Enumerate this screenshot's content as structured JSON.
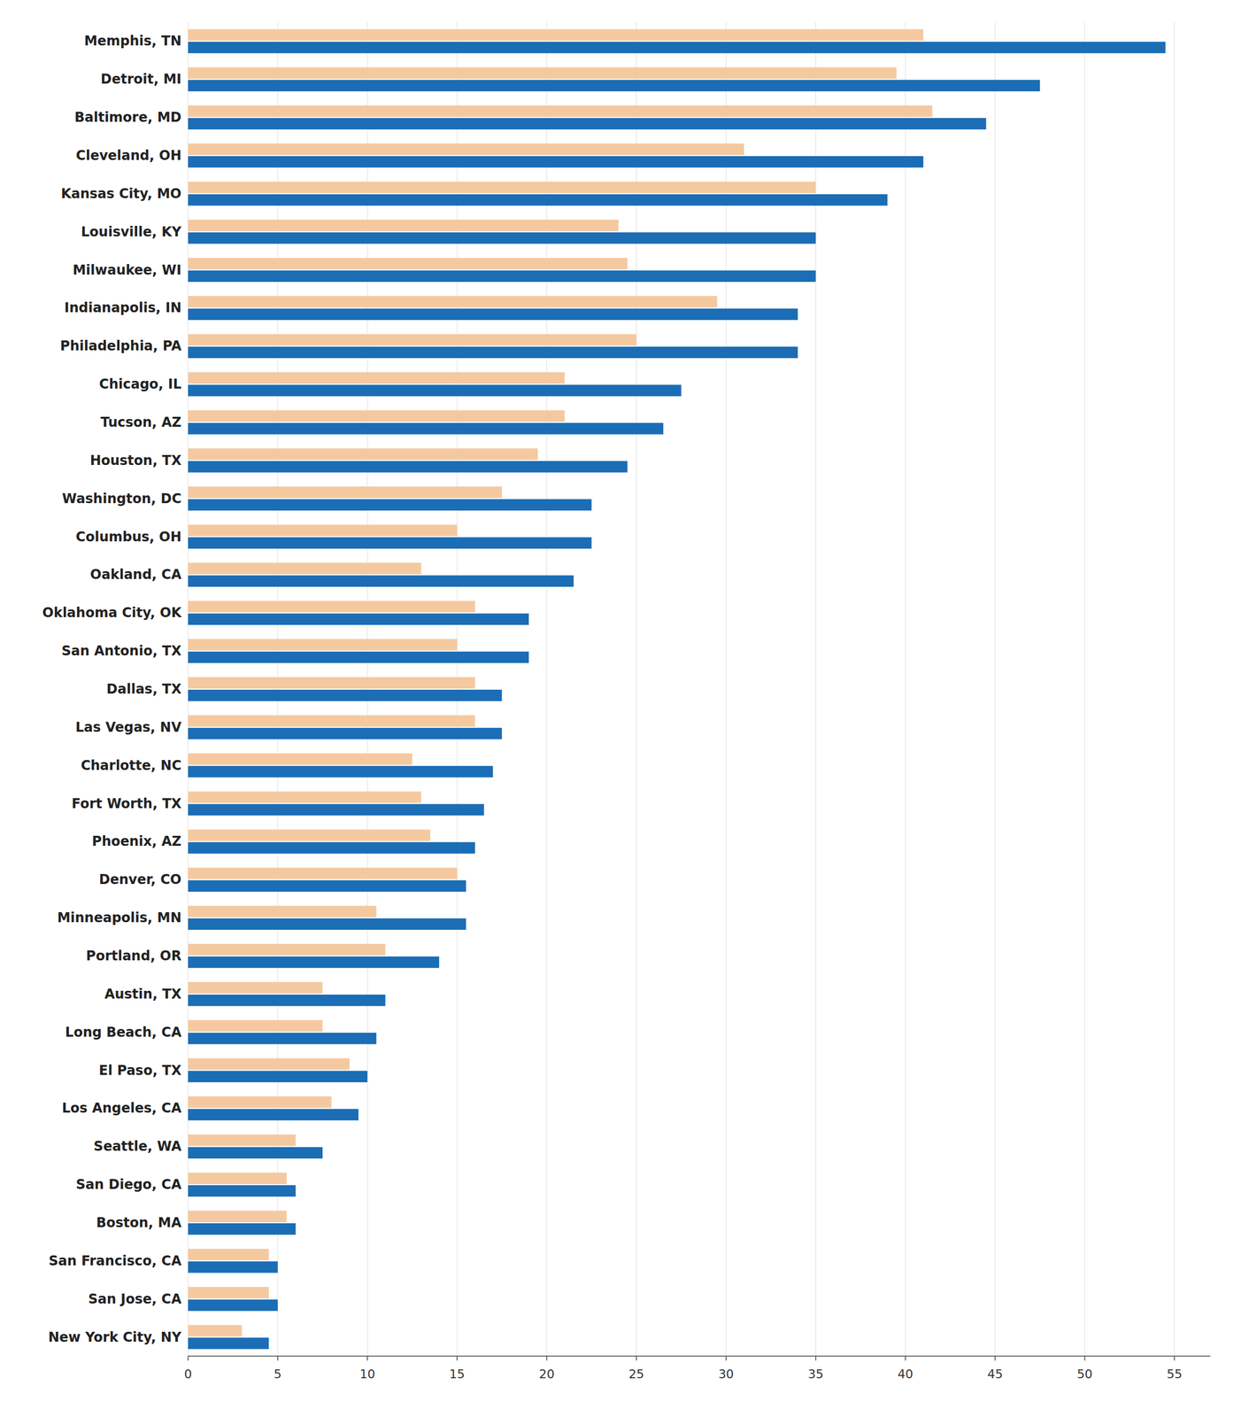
{
  "chart_data": {
    "type": "bar",
    "orientation": "horizontal",
    "grid": true,
    "categories": [
      "Memphis, TN",
      "Detroit, MI",
      "Baltimore, MD",
      "Cleveland, OH",
      "Kansas City, MO",
      "Louisville, KY",
      "Milwaukee, WI",
      "Indianapolis, IN",
      "Philadelphia, PA",
      "Chicago, IL",
      "Tucson, AZ",
      "Houston, TX",
      "Washington, DC",
      "Columbus, OH",
      "Oakland, CA",
      "Oklahoma City, OK",
      "San Antonio, TX",
      "Dallas, TX",
      "Las Vegas, NV",
      "Charlotte, NC",
      "Fort Worth, TX",
      "Phoenix, AZ",
      "Denver, CO",
      "Minneapolis, MN",
      "Portland, OR",
      "Austin, TX",
      "Long Beach, CA",
      "El Paso, TX",
      "Los Angeles, CA",
      "Seattle, WA",
      "San Diego, CA",
      "Boston, MA",
      "San Francisco, CA",
      "San Jose, CA",
      "New York City, NY"
    ],
    "series": [
      {
        "color": "#F5C9A0",
        "values": [
          41.0,
          39.5,
          41.5,
          31.0,
          35.0,
          24.0,
          24.5,
          29.5,
          25.0,
          21.0,
          21.0,
          19.5,
          17.5,
          15.0,
          13.0,
          16.0,
          15.0,
          16.0,
          16.0,
          12.5,
          13.0,
          13.5,
          15.0,
          10.5,
          11.0,
          7.5,
          7.5,
          9.0,
          8.0,
          6.0,
          5.5,
          5.5,
          4.5,
          4.5,
          3.0
        ]
      },
      {
        "color": "#1B6DB5",
        "values": [
          54.5,
          47.5,
          44.5,
          41.0,
          39.0,
          35.0,
          35.0,
          34.0,
          34.0,
          27.5,
          26.5,
          24.5,
          22.5,
          22.5,
          21.5,
          19.0,
          19.0,
          17.5,
          17.5,
          17.0,
          16.5,
          16.0,
          15.5,
          15.5,
          14.0,
          11.0,
          10.5,
          10.0,
          9.5,
          7.5,
          6.0,
          6.0,
          5.0,
          5.0,
          4.5
        ]
      }
    ],
    "xlim": [
      0,
      57
    ],
    "xticks": [
      0,
      5,
      10,
      15,
      20,
      25,
      30,
      35,
      40,
      45,
      50,
      55
    ]
  }
}
